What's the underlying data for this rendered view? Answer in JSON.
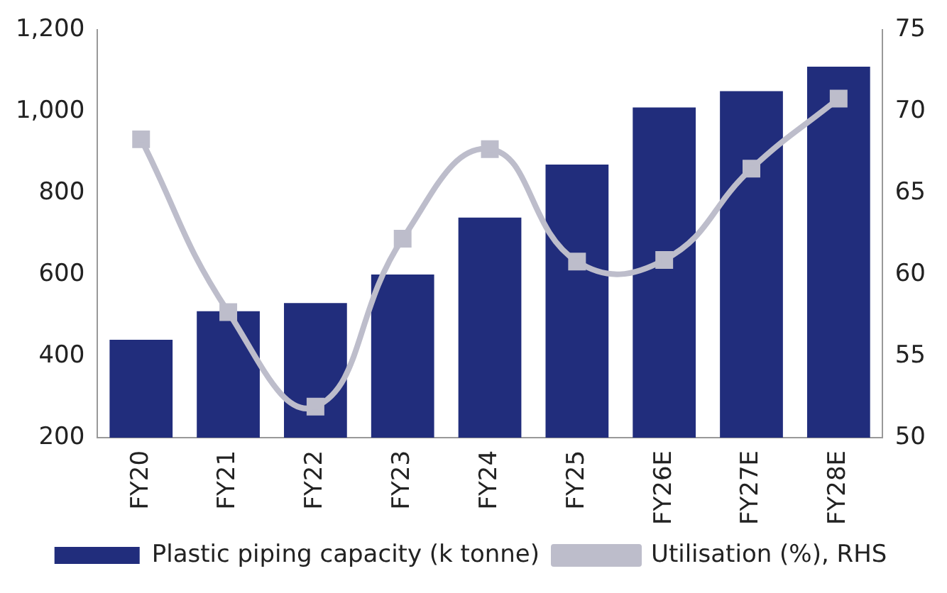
{
  "chart_data": {
    "type": "bar",
    "categories": [
      "FY20",
      "FY21",
      "FY22",
      "FY23",
      "FY24",
      "FY25",
      "FY26E",
      "FY27E",
      "FY28E"
    ],
    "series": [
      {
        "name": "Plastic piping capacity (k tonne)",
        "color": "#212d7c",
        "values": [
          440,
          510,
          530,
          600,
          740,
          870,
          1010,
          1050,
          1110
        ]
      },
      {
        "name": "Utilisation (%), RHS",
        "type": "line",
        "axis": "y2",
        "color": "#bdbdcb",
        "marker": "square",
        "values": [
          68.3,
          57.7,
          51.9,
          62.2,
          67.7,
          60.8,
          60.9,
          66.5,
          70.8
        ]
      }
    ],
    "ylim": [
      200,
      1200
    ],
    "yticks": [
      200,
      400,
      600,
      800,
      {
        "value": 1000,
        "label": "1,000"
      },
      {
        "value": 1200,
        "label": "1,200"
      }
    ],
    "y2lim": [
      50,
      75
    ],
    "y2ticks": [
      50,
      55,
      60,
      65,
      70,
      75
    ],
    "grid": false,
    "legend": "bottom"
  }
}
